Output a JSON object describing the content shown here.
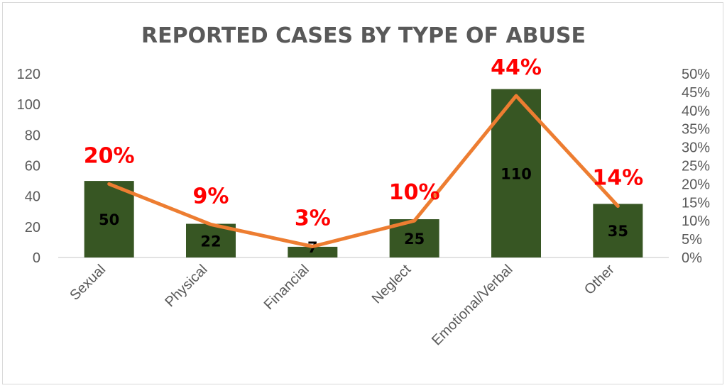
{
  "chart_data": {
    "type": "bar",
    "title": "REPORTED CASES BY TYPE OF ABUSE",
    "categories": [
      "Sexual",
      "Physical",
      "Financial",
      "Neglect",
      "Emotional/Verbal",
      "Other"
    ],
    "series": [
      {
        "type": "bar",
        "axis": "left",
        "values": [
          50,
          22,
          7,
          25,
          110,
          35
        ],
        "labels": [
          "50",
          "22",
          "7",
          "25",
          "110",
          "35"
        ],
        "color": "#375623"
      },
      {
        "type": "line",
        "axis": "right",
        "values": [
          0.2,
          0.09,
          0.03,
          0.1,
          0.44,
          0.14
        ],
        "labels": [
          "20%",
          "9%",
          "3%",
          "10%",
          "44%",
          "14%"
        ],
        "color": "#ed7d31"
      }
    ],
    "y_left": {
      "ylim": [
        0,
        120
      ],
      "ticks": [
        "0",
        "20",
        "40",
        "60",
        "80",
        "100",
        "120"
      ]
    },
    "y_right": {
      "ylim": [
        0,
        0.5
      ],
      "ticks": [
        "0%",
        "5%",
        "10%",
        "15%",
        "20%",
        "25%",
        "30%",
        "35%",
        "40%",
        "45%",
        "50%"
      ]
    },
    "grid": false,
    "legend": "none"
  }
}
